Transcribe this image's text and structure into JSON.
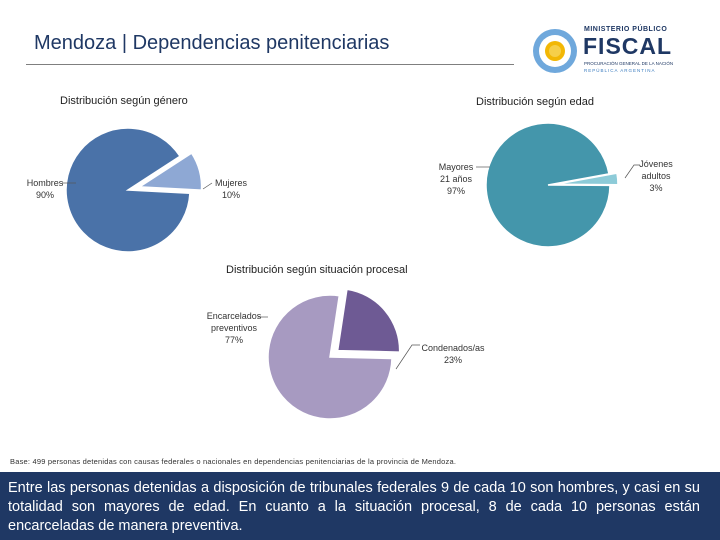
{
  "header": {
    "title": "Mendoza | Dependencias penitenciarias",
    "logo": {
      "line1": "MINISTERIO PÚBLICO",
      "line2": "FISCAL",
      "line3": "PROCURACIÓN GENERAL DE LA NACIÓN",
      "line4": "REPÚBLICA ARGENTINA"
    }
  },
  "chart_data": [
    {
      "type": "pie",
      "title": "Distribución según género",
      "slices": [
        {
          "name": "Hombres",
          "label": "Hombres",
          "pct_label": "90%",
          "value": 90,
          "color": "#4a72a8"
        },
        {
          "name": "Mujeres",
          "label": "Mujeres",
          "pct_label": "10%",
          "value": 10,
          "color": "#8ea8d4"
        }
      ]
    },
    {
      "type": "pie",
      "title": "Distribución según edad",
      "slices": [
        {
          "name": "Mayores 21 años",
          "label": "Mayores 21 años",
          "pct_label": "97%",
          "value": 97,
          "color": "#4496ab"
        },
        {
          "name": "Jóvenes adultos",
          "label": "Jóvenes adultos",
          "pct_label": "3%",
          "value": 3,
          "color": "#8dcbd8"
        }
      ]
    },
    {
      "type": "pie",
      "title": "Distribución según situación procesal",
      "slices": [
        {
          "name": "Encarcelados preventivos",
          "label": "Encarcelados preventivos",
          "pct_label": "77%",
          "value": 77,
          "color": "#a79ac1"
        },
        {
          "name": "Condenados/as",
          "label": "Condenados/as",
          "pct_label": "23%",
          "value": 23,
          "color": "#6e5a94"
        }
      ]
    }
  ],
  "base_note": "Base: 499 personas detenidas con causas federales o nacionales en dependencias penitenciarias de la provincia de Mendoza.",
  "footer": {
    "text": "Entre las personas detenidas a disposición de tribunales federales 9 de cada 10 son hombres, y casi en su totalidad son mayores de edad. En cuanto a la situación procesal, 8 de cada 10 personas están encarceladas de manera preventiva."
  }
}
